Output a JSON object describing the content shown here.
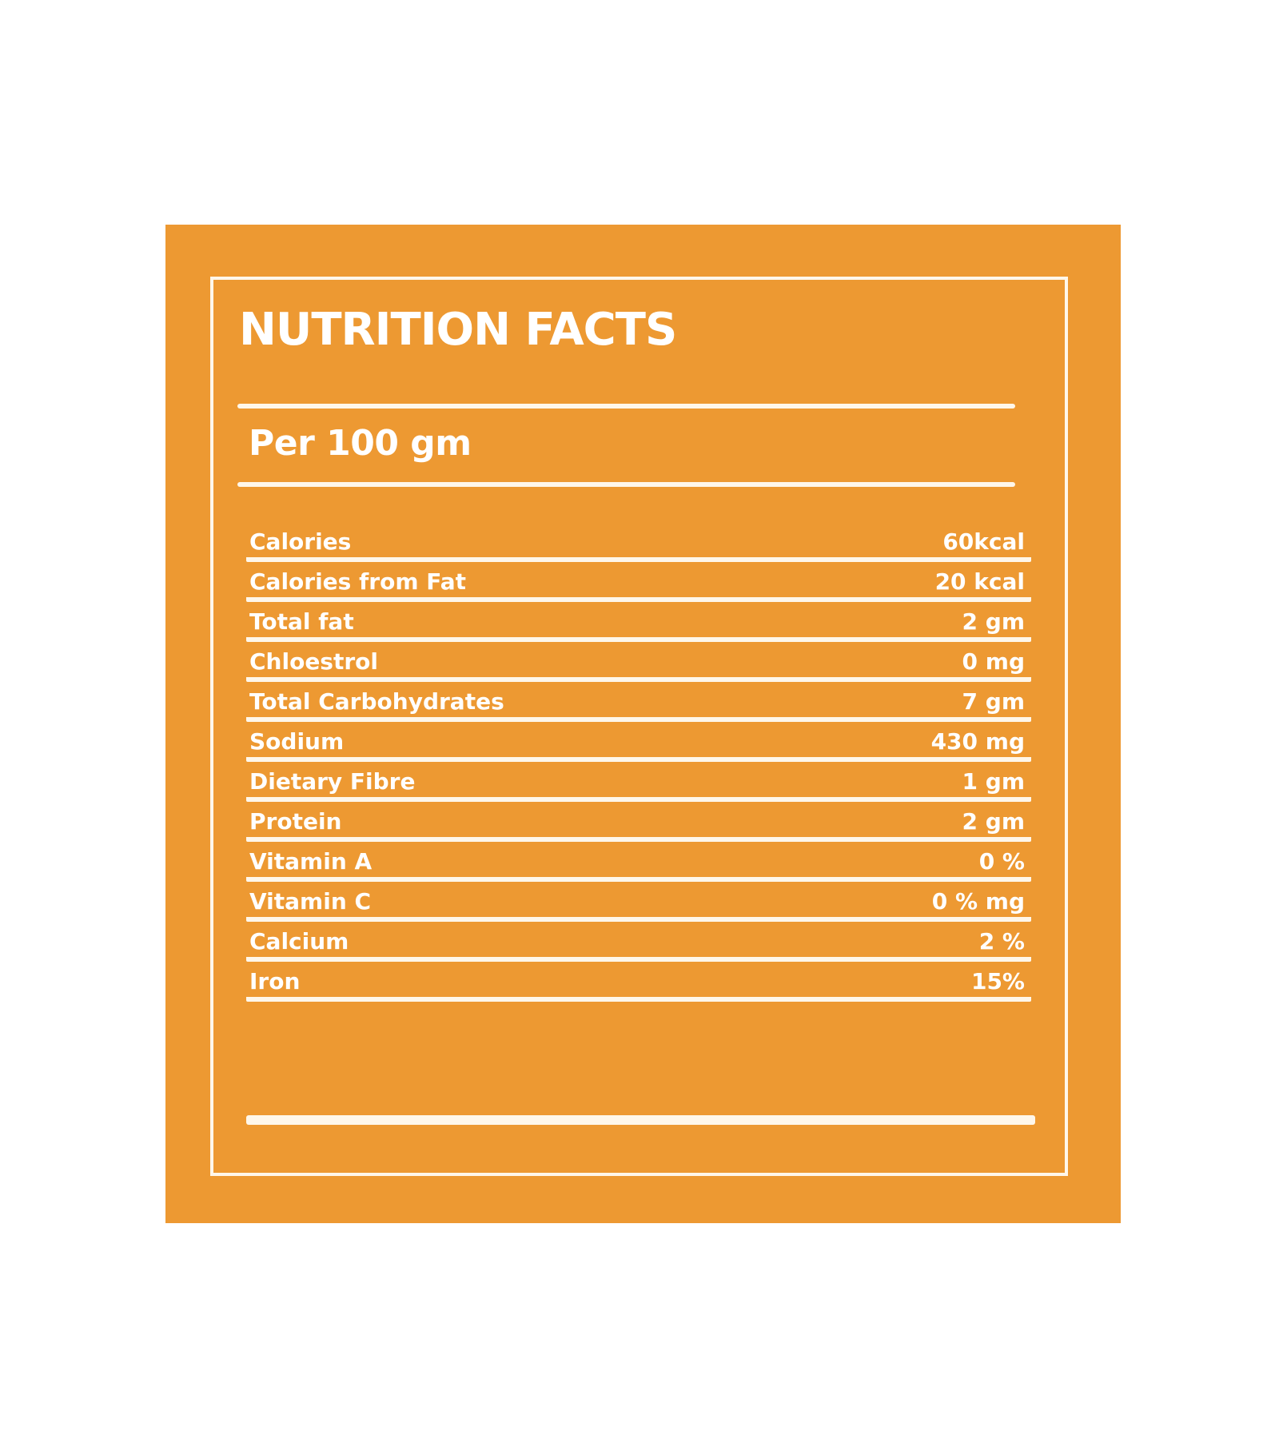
{
  "title": "NUTRITION FACTS",
  "serving": "Per 100 gm",
  "colors": {
    "panel": "#ed9932",
    "line": "#fff7ea",
    "text": "#ffffff"
  },
  "nutrients": [
    {
      "label": "Calories",
      "value": "60kcal"
    },
    {
      "label": "Calories from Fat",
      "value": "20 kcal"
    },
    {
      "label": "Total fat",
      "value": "2 gm"
    },
    {
      "label": "Chloestrol",
      "value": "0 mg"
    },
    {
      "label": "Total Carbohydrates",
      "value": "7 gm"
    },
    {
      "label": "Sodium",
      "value": "430 mg"
    },
    {
      "label": "Dietary Fibre",
      "value": "1 gm"
    },
    {
      "label": "Protein",
      "value": "2 gm"
    },
    {
      "label": "Vitamin A",
      "value": "0 %"
    },
    {
      "label": "Vitamin C",
      "value": "0 % mg"
    },
    {
      "label": "Calcium",
      "value": "2 %"
    },
    {
      "label": "Iron",
      "value": "15%"
    }
  ]
}
